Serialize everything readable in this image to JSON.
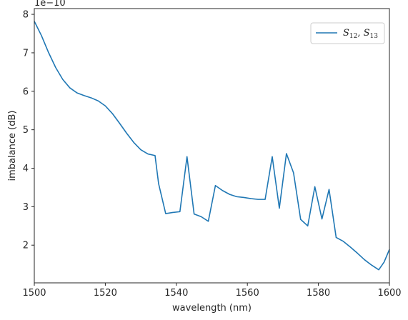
{
  "chart_data": {
    "type": "line",
    "title": "",
    "xlabel": "wavelength (nm)",
    "ylabel": "imbalance (dB)",
    "offset_text": "1e−10",
    "xlim": [
      1500,
      1600
    ],
    "ylim": [
      1.02,
      8.15
    ],
    "xticks": [
      1500,
      1520,
      1540,
      1560,
      1580,
      1600
    ],
    "yticks": [
      2,
      3,
      4,
      5,
      6,
      7,
      8
    ],
    "grid": false,
    "legend_position": "top-right",
    "colors": {
      "line": "#1f77b4",
      "axis": "#262626",
      "legend_border": "#cccccc"
    },
    "series": [
      {
        "name": "S12,S13",
        "name_parts": {
          "a": "S",
          "a_sub": "12",
          "sep": ", ",
          "b": "S",
          "b_sub": "13"
        },
        "x": [
          1500,
          1502,
          1504,
          1506,
          1508,
          1510,
          1512,
          1514,
          1516,
          1518,
          1520,
          1522,
          1524,
          1526,
          1528,
          1530,
          1532,
          1534,
          1535,
          1537,
          1539,
          1541,
          1543,
          1545,
          1547,
          1549,
          1551,
          1553,
          1555,
          1557,
          1559,
          1561,
          1563,
          1565,
          1567,
          1569,
          1571,
          1573,
          1575,
          1577,
          1579,
          1581,
          1583,
          1585,
          1587,
          1589,
          1591,
          1593,
          1595,
          1597,
          1598.5,
          1600
        ],
        "y": [
          7.82,
          7.45,
          7.01,
          6.62,
          6.31,
          6.09,
          5.96,
          5.89,
          5.83,
          5.75,
          5.62,
          5.42,
          5.17,
          4.91,
          4.67,
          4.48,
          4.37,
          4.33,
          3.6,
          2.82,
          2.85,
          2.87,
          4.3,
          2.81,
          2.74,
          2.62,
          3.55,
          3.42,
          3.32,
          3.26,
          3.24,
          3.21,
          3.19,
          3.19,
          4.3,
          2.96,
          4.38,
          3.88,
          2.67,
          2.5,
          3.52,
          2.68,
          3.45,
          2.2,
          2.1,
          1.95,
          1.79,
          1.62,
          1.48,
          1.36,
          1.56,
          1.89
        ]
      }
    ]
  }
}
